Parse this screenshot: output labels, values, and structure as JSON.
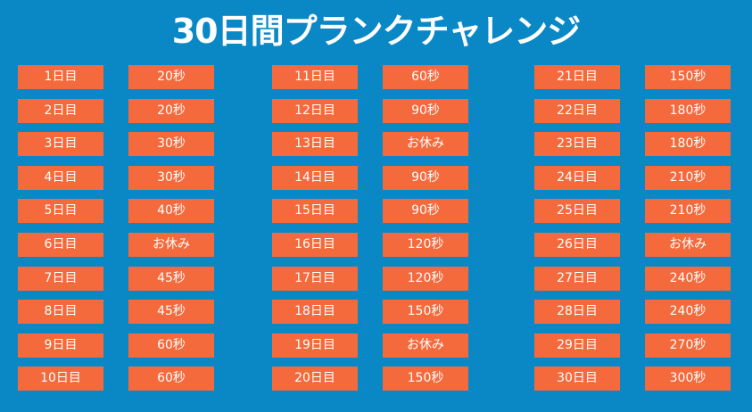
{
  "title": "30日間プランクチャレンジ",
  "accent_color": "#f46a3c",
  "background_color": "#0a88c6",
  "schedule": [
    {
      "day": "1日目",
      "value": "20秒"
    },
    {
      "day": "2日目",
      "value": "20秒"
    },
    {
      "day": "3日目",
      "value": "30秒"
    },
    {
      "day": "4日目",
      "value": "30秒"
    },
    {
      "day": "5日目",
      "value": "40秒"
    },
    {
      "day": "6日目",
      "value": "お休み"
    },
    {
      "day": "7日目",
      "value": "45秒"
    },
    {
      "day": "8日目",
      "value": "45秒"
    },
    {
      "day": "9日目",
      "value": "60秒"
    },
    {
      "day": "10日目",
      "value": "60秒"
    },
    {
      "day": "11日目",
      "value": "60秒"
    },
    {
      "day": "12日目",
      "value": "90秒"
    },
    {
      "day": "13日目",
      "value": "お休み"
    },
    {
      "day": "14日目",
      "value": "90秒"
    },
    {
      "day": "15日目",
      "value": "90秒"
    },
    {
      "day": "16日目",
      "value": "120秒"
    },
    {
      "day": "17日目",
      "value": "120秒"
    },
    {
      "day": "18日目",
      "value": "150秒"
    },
    {
      "day": "19日目",
      "value": "お休み"
    },
    {
      "day": "20日目",
      "value": "150秒"
    },
    {
      "day": "21日目",
      "value": "150秒"
    },
    {
      "day": "22日目",
      "value": "180秒"
    },
    {
      "day": "23日目",
      "value": "180秒"
    },
    {
      "day": "24日目",
      "value": "210秒"
    },
    {
      "day": "25日目",
      "value": "210秒"
    },
    {
      "day": "26日目",
      "value": "お休み"
    },
    {
      "day": "27日目",
      "value": "240秒"
    },
    {
      "day": "28日目",
      "value": "240秒"
    },
    {
      "day": "29日目",
      "value": "270秒"
    },
    {
      "day": "30日目",
      "value": "300秒"
    }
  ]
}
